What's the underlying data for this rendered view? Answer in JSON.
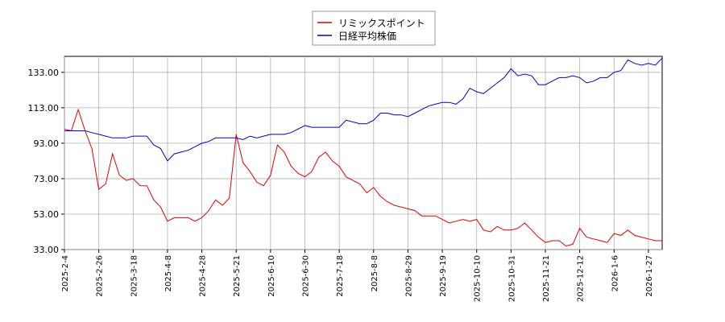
{
  "chart_data": {
    "type": "line",
    "categories": [
      "2025-2-4",
      null,
      null,
      null,
      null,
      "2025-2-26",
      null,
      null,
      null,
      null,
      "2025-3-18",
      null,
      null,
      null,
      null,
      "2025-4-8",
      null,
      null,
      null,
      null,
      "2025-4-28",
      null,
      null,
      null,
      null,
      "2025-5-21",
      null,
      null,
      null,
      null,
      "2025-6-10",
      null,
      null,
      null,
      null,
      "2025-6-30",
      null,
      null,
      null,
      null,
      "2025-7-18",
      null,
      null,
      null,
      null,
      "2025-8-8",
      null,
      null,
      null,
      null,
      "2025-8-29",
      null,
      null,
      null,
      null,
      "2025-9-19",
      null,
      null,
      null,
      null,
      "2025-10-10",
      null,
      null,
      null,
      null,
      "2025-10-31",
      null,
      null,
      null,
      null,
      "2025-11-21",
      null,
      null,
      null,
      null,
      "2025-12-12",
      null,
      null,
      null,
      null,
      "2026-1-6",
      null,
      null,
      null,
      null,
      "2026-1-27",
      null,
      null
    ],
    "series": [
      {
        "name": "リミックスポイント",
        "color": "#dd0000",
        "values": [
          101,
          100,
          112,
          100,
          90,
          67,
          70,
          87,
          75,
          72,
          73,
          69,
          69,
          61,
          57,
          49,
          51,
          51,
          51,
          49,
          51,
          55,
          61,
          58,
          62,
          98,
          82,
          77,
          71,
          69,
          75,
          92,
          88,
          80,
          76,
          74,
          77,
          85,
          88,
          83,
          80,
          74,
          72,
          70,
          65,
          68,
          63,
          60,
          58,
          57,
          56,
          55,
          52,
          52,
          52,
          50,
          48,
          49,
          50,
          49,
          50,
          44,
          43,
          46,
          44,
          44,
          45,
          48,
          44,
          40,
          37,
          38,
          38,
          35,
          36,
          45,
          40,
          39,
          38,
          37,
          42,
          41,
          44,
          41,
          40,
          39,
          38,
          38
        ]
      },
      {
        "name": "日経平均株価",
        "color": "#0000cc",
        "values": [
          100,
          100,
          100,
          100,
          99,
          98,
          97,
          96,
          96,
          96,
          97,
          97,
          97,
          92,
          90,
          83,
          87,
          88,
          89,
          91,
          93,
          94,
          96,
          96,
          96,
          96,
          95,
          97,
          96,
          97,
          98,
          98,
          98,
          99,
          101,
          103,
          102,
          102,
          102,
          102,
          102,
          106,
          105,
          104,
          104,
          106,
          110,
          110,
          109,
          109,
          108,
          110,
          112,
          114,
          115,
          116,
          116,
          115,
          118,
          124,
          122,
          121,
          124,
          127,
          130,
          135,
          131,
          132,
          131,
          126,
          126,
          128,
          130,
          130,
          131,
          130,
          127,
          128,
          130,
          130,
          133,
          134,
          140,
          138,
          137,
          138,
          137,
          141
        ]
      }
    ],
    "ylim": [
      33,
      142
    ],
    "yticks": [
      {
        "value": 33,
        "label": "33.00"
      },
      {
        "value": 53,
        "label": "53.00"
      },
      {
        "value": 73,
        "label": "73.00"
      },
      {
        "value": 93,
        "label": "93.00"
      },
      {
        "value": 113,
        "label": "113.00"
      },
      {
        "value": 133,
        "label": "133.00"
      }
    ],
    "grid": true,
    "legend": "top"
  }
}
